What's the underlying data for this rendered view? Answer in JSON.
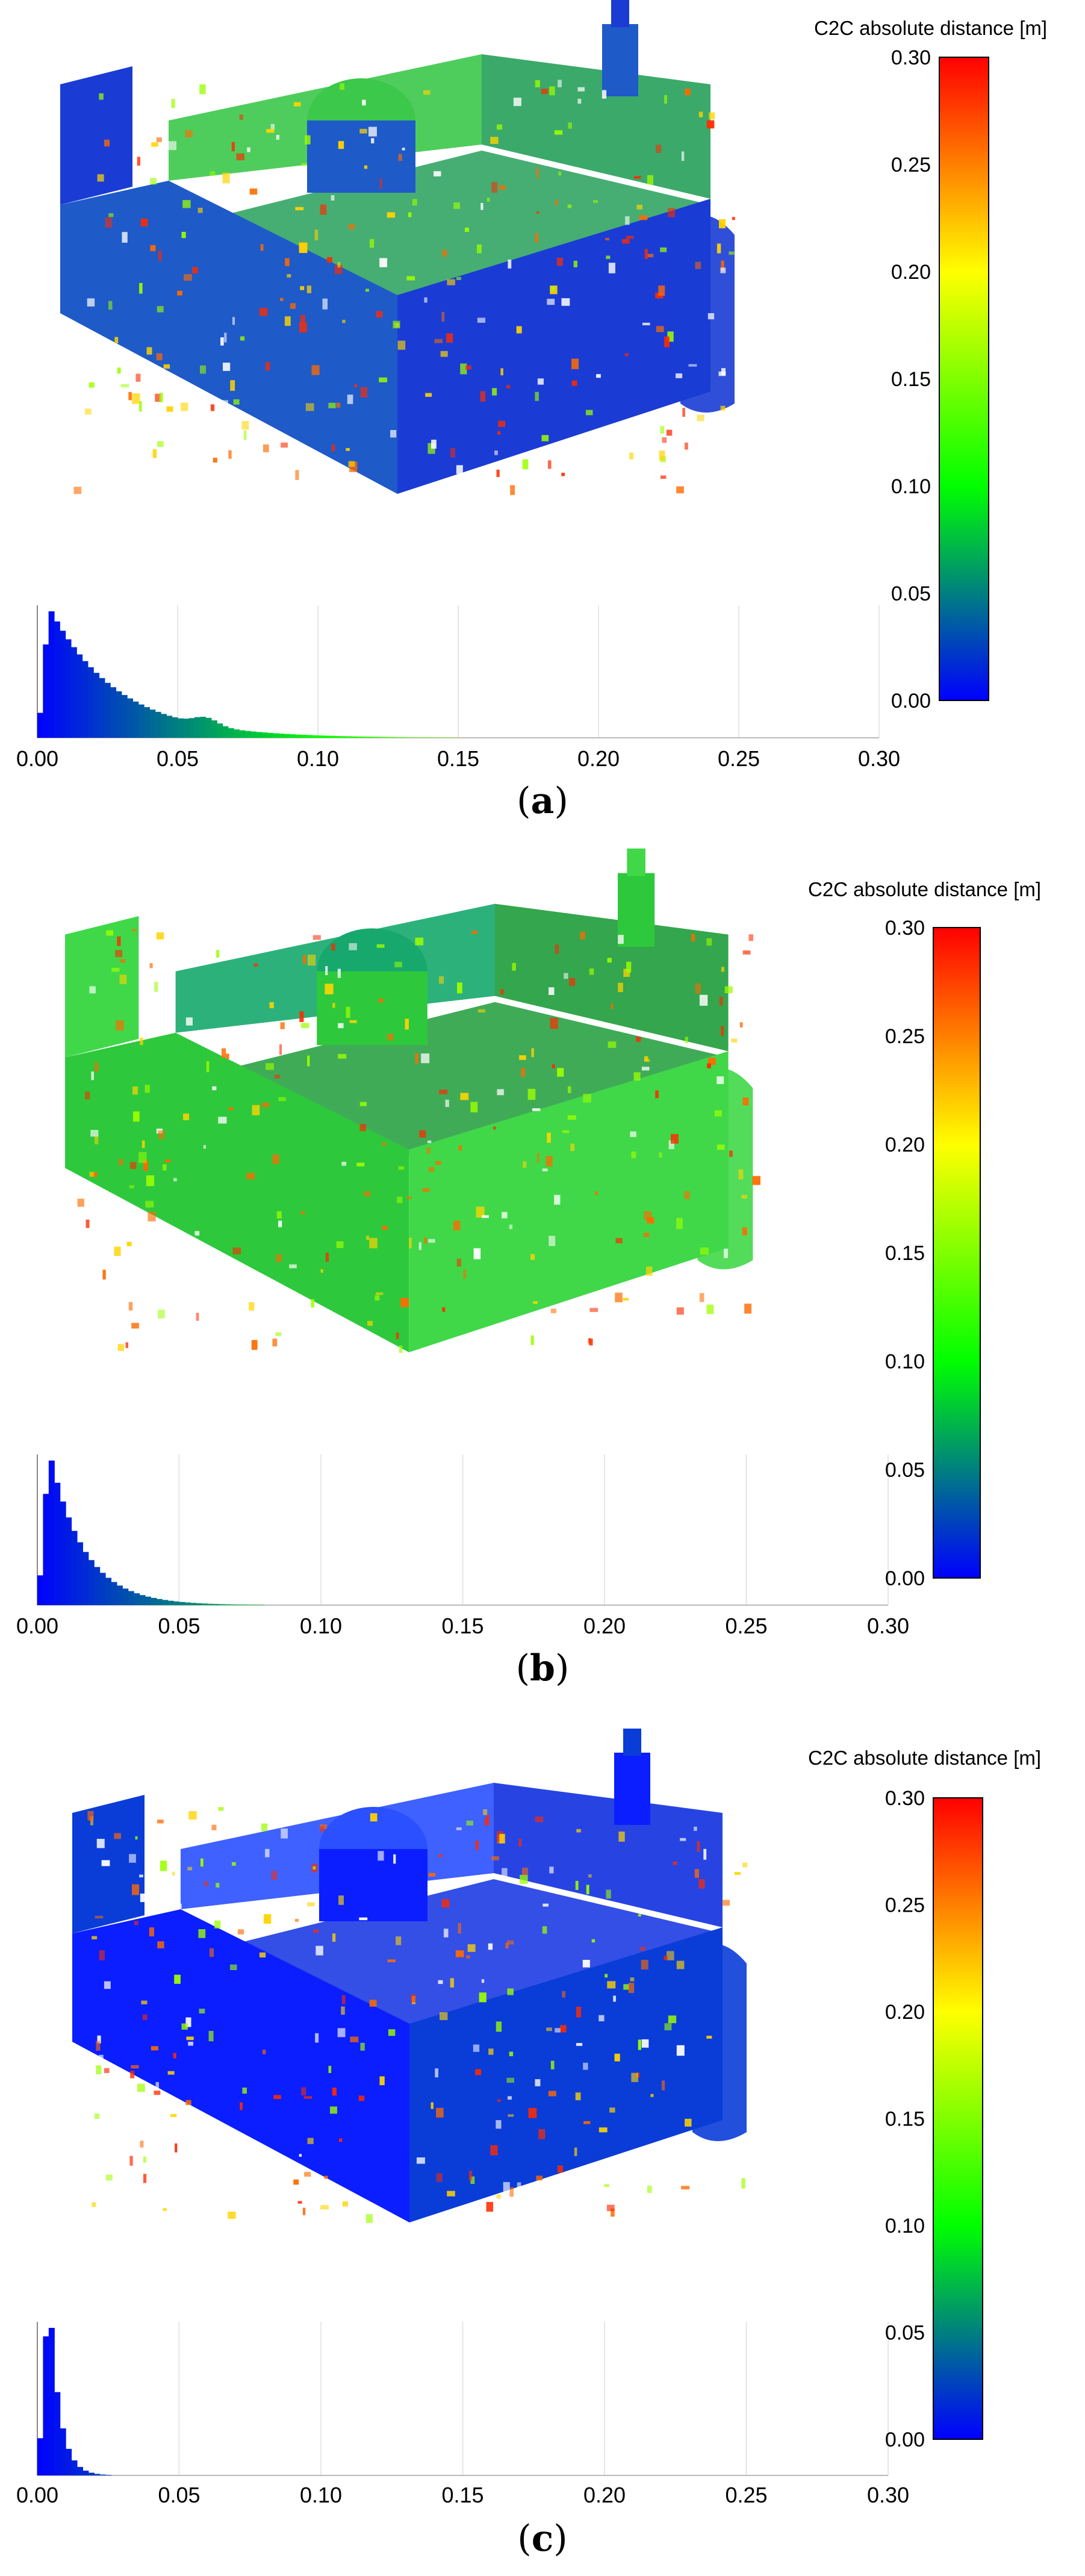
{
  "chart_data": [
    {
      "type": "histogram",
      "panel": "a",
      "caption_label": "a",
      "colorbar": {
        "title": "C2C absolute distance [m]",
        "ticks": [
          "0.00",
          "0.05",
          "0.10",
          "0.15",
          "0.20",
          "0.25",
          "0.30"
        ],
        "range": [
          0.0,
          0.3
        ],
        "colors": [
          "#0000ff",
          "#00ff00",
          "#ffff00",
          "#ff0000"
        ]
      },
      "histogram": {
        "x_ticks": [
          "0.00",
          "0.05",
          "0.10",
          "0.15",
          "0.20",
          "0.25",
          "0.30"
        ],
        "xlim": [
          0.0,
          0.3
        ],
        "bin_width": 0.002,
        "peak_x": 0.004,
        "decay": 0.024,
        "secondary_bump_x": 0.06
      },
      "point_cloud_tone": "mixed-blue-green"
    },
    {
      "type": "histogram",
      "panel": "b",
      "caption_label": "b",
      "colorbar": {
        "title": "C2C absolute distance [m]",
        "ticks": [
          "0.00",
          "0.05",
          "0.10",
          "0.15",
          "0.20",
          "0.25",
          "0.30"
        ],
        "range": [
          0.0,
          0.3
        ],
        "colors": [
          "#0000ff",
          "#00ff00",
          "#ffff00",
          "#ff0000"
        ]
      },
      "histogram": {
        "x_ticks": [
          "0.00",
          "0.05",
          "0.10",
          "0.15",
          "0.20",
          "0.25",
          "0.30"
        ],
        "xlim": [
          0.0,
          0.3
        ],
        "bin_width": 0.002,
        "peak_x": 0.004,
        "decay": 0.012,
        "secondary_bump_x": 0
      },
      "point_cloud_tone": "green"
    },
    {
      "type": "histogram",
      "panel": "c",
      "caption_label": "c",
      "colorbar": {
        "title": "C2C absolute distance [m]",
        "ticks": [
          "0.00",
          "0.05",
          "0.10",
          "0.15",
          "0.20",
          "0.25",
          "0.30"
        ],
        "range": [
          0.0,
          0.3
        ],
        "colors": [
          "#0000ff",
          "#00ff00",
          "#ffff00",
          "#ff0000"
        ]
      },
      "histogram": {
        "x_ticks": [
          "0.00",
          "0.05",
          "0.10",
          "0.15",
          "0.20",
          "0.25",
          "0.30"
        ],
        "xlim": [
          0.0,
          0.3
        ],
        "bin_width": 0.002,
        "peak_x": 0.004,
        "decay": 0.0035,
        "secondary_bump_x": 0
      },
      "point_cloud_tone": "blue"
    }
  ]
}
